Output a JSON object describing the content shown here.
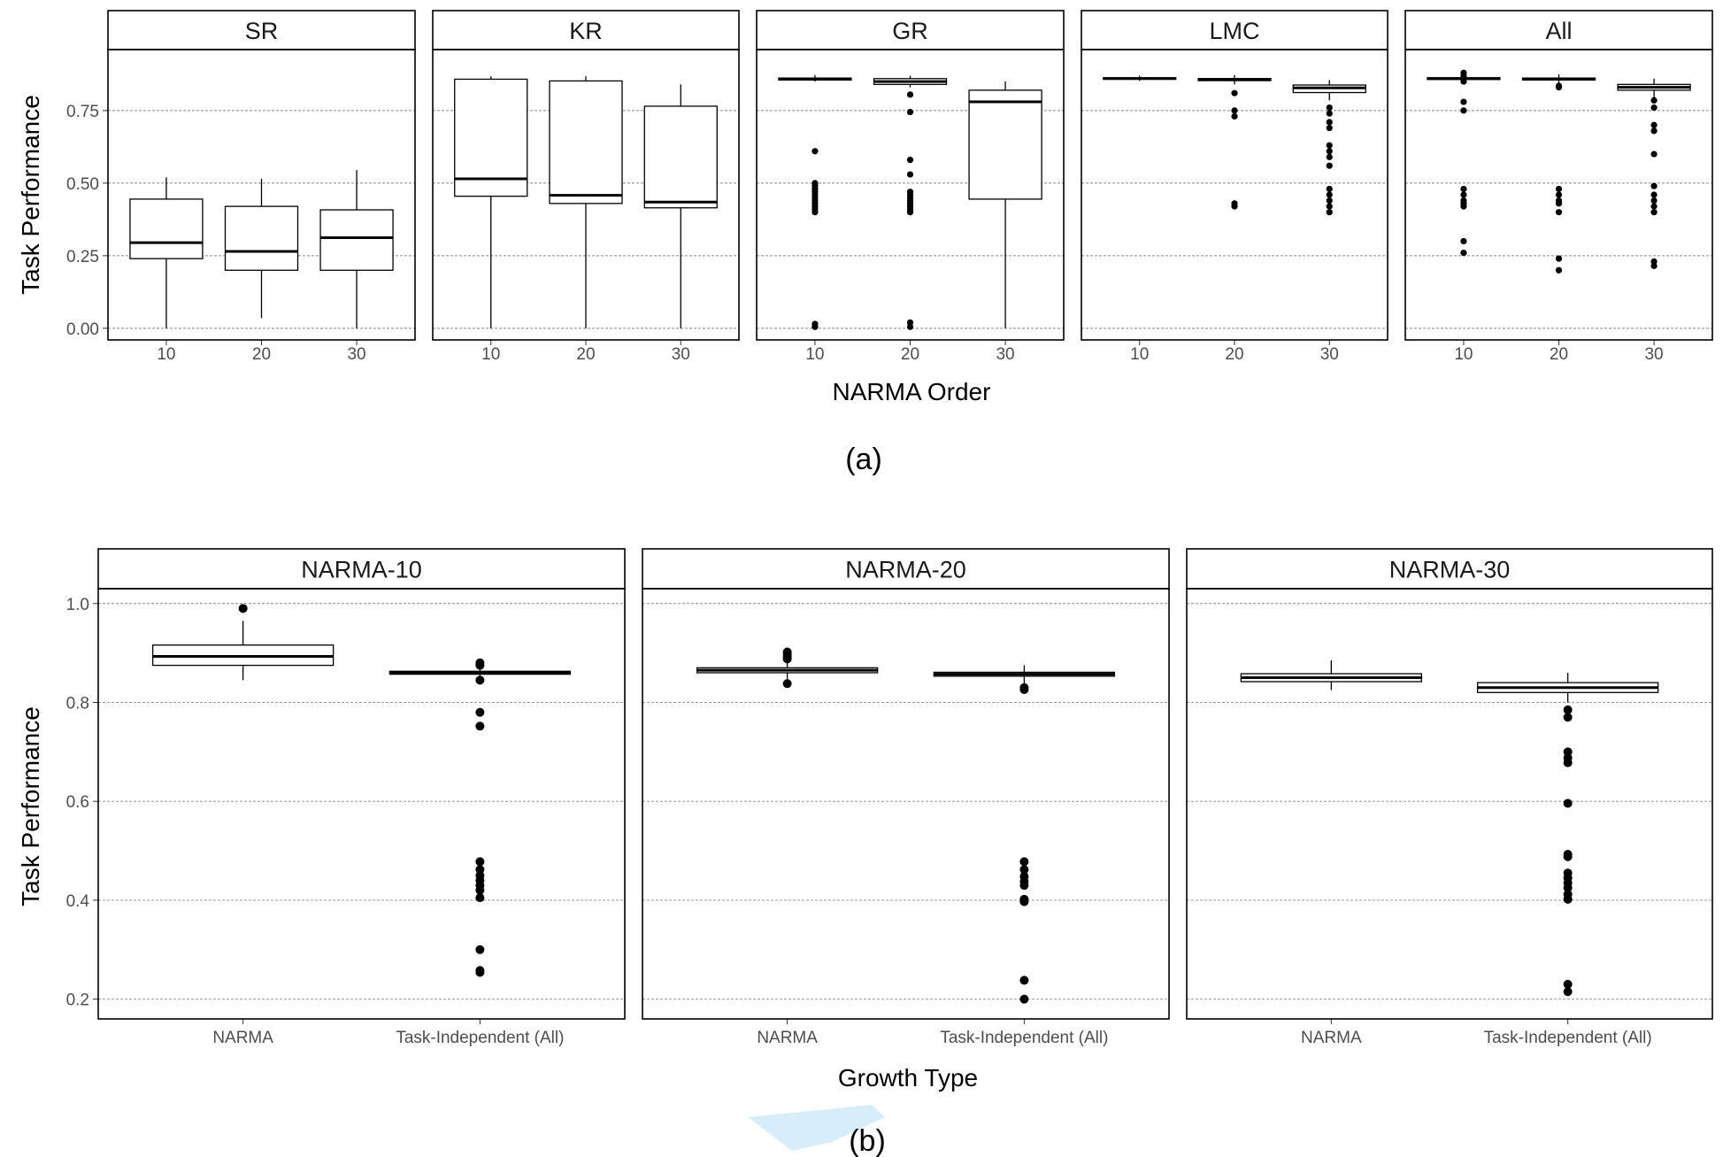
{
  "figure": {
    "caption_a": "(a)",
    "caption_b": "(b)",
    "watermark_color": "#c9e8f8"
  },
  "chart_data": [
    {
      "type": "box",
      "label": "(a)",
      "xlabel": "NARMA Order",
      "ylabel": "Task Performance",
      "ylim": [
        -0.04,
        0.96
      ],
      "yticks": [
        0,
        0.25,
        0.5,
        0.75
      ],
      "ytick_labels": [
        "0.00",
        "0.25",
        "0.50",
        "0.75"
      ],
      "categories": [
        "10",
        "20",
        "30"
      ],
      "grid": "horizontal dashed",
      "panels": [
        {
          "title": "SR",
          "boxes": [
            {
              "x": "10",
              "q1": 0.24,
              "median": 0.295,
              "q3": 0.445,
              "whisker_low": 0.0,
              "whisker_high": 0.52,
              "outliers": []
            },
            {
              "x": "20",
              "q1": 0.2,
              "median": 0.265,
              "q3": 0.42,
              "whisker_low": 0.035,
              "whisker_high": 0.515,
              "outliers": []
            },
            {
              "x": "30",
              "q1": 0.2,
              "median": 0.312,
              "q3": 0.408,
              "whisker_low": 0.0,
              "whisker_high": 0.545,
              "outliers": []
            }
          ]
        },
        {
          "title": "KR",
          "boxes": [
            {
              "x": "10",
              "q1": 0.455,
              "median": 0.515,
              "q3": 0.858,
              "whisker_low": 0.0,
              "whisker_high": 0.868,
              "outliers": []
            },
            {
              "x": "20",
              "q1": 0.43,
              "median": 0.458,
              "q3": 0.852,
              "whisker_low": 0.0,
              "whisker_high": 0.868,
              "outliers": []
            },
            {
              "x": "30",
              "q1": 0.415,
              "median": 0.435,
              "q3": 0.765,
              "whisker_low": 0.0,
              "whisker_high": 0.84,
              "outliers": []
            }
          ]
        },
        {
          "title": "GR",
          "boxes": [
            {
              "x": "10",
              "q1": 0.855,
              "median": 0.858,
              "q3": 0.862,
              "whisker_low": 0.85,
              "whisker_high": 0.872,
              "outliers": [
                0.61,
                0.5,
                0.49,
                0.48,
                0.47,
                0.46,
                0.45,
                0.44,
                0.43,
                0.42,
                0.41,
                0.4,
                0.015,
                0.005
              ]
            },
            {
              "x": "20",
              "q1": 0.84,
              "median": 0.85,
              "q3": 0.86,
              "whisker_low": 0.83,
              "whisker_high": 0.87,
              "outliers": [
                0.805,
                0.745,
                0.58,
                0.53,
                0.47,
                0.46,
                0.45,
                0.44,
                0.43,
                0.42,
                0.41,
                0.4,
                0.02,
                0.005
              ]
            },
            {
              "x": "30",
              "q1": 0.445,
              "median": 0.78,
              "q3": 0.82,
              "whisker_low": 0.0,
              "whisker_high": 0.85,
              "outliers": []
            }
          ]
        },
        {
          "title": "LMC",
          "boxes": [
            {
              "x": "10",
              "q1": 0.858,
              "median": 0.86,
              "q3": 0.863,
              "whisker_low": 0.852,
              "whisker_high": 0.87,
              "outliers": []
            },
            {
              "x": "20",
              "q1": 0.853,
              "median": 0.857,
              "q3": 0.86,
              "whisker_low": 0.84,
              "whisker_high": 0.872,
              "outliers": [
                0.81,
                0.75,
                0.73,
                0.43,
                0.42
              ]
            },
            {
              "x": "30",
              "q1": 0.812,
              "median": 0.828,
              "q3": 0.838,
              "whisker_low": 0.785,
              "whisker_high": 0.855,
              "outliers": [
                0.76,
                0.74,
                0.71,
                0.69,
                0.63,
                0.61,
                0.59,
                0.56,
                0.48,
                0.46,
                0.44,
                0.42,
                0.4
              ]
            }
          ]
        },
        {
          "title": "All",
          "boxes": [
            {
              "x": "10",
              "q1": 0.857,
              "median": 0.86,
              "q3": 0.863,
              "whisker_low": 0.85,
              "whisker_high": 0.875,
              "outliers": [
                0.88,
                0.87,
                0.85,
                0.78,
                0.75,
                0.48,
                0.46,
                0.44,
                0.43,
                0.42,
                0.3,
                0.26
              ]
            },
            {
              "x": "20",
              "q1": 0.855,
              "median": 0.858,
              "q3": 0.862,
              "whisker_low": 0.84,
              "whisker_high": 0.875,
              "outliers": [
                0.835,
                0.83,
                0.48,
                0.46,
                0.44,
                0.43,
                0.4,
                0.24,
                0.2
              ]
            },
            {
              "x": "30",
              "q1": 0.82,
              "median": 0.83,
              "q3": 0.84,
              "whisker_low": 0.795,
              "whisker_high": 0.86,
              "outliers": [
                0.785,
                0.76,
                0.7,
                0.68,
                0.6,
                0.49,
                0.46,
                0.44,
                0.42,
                0.4,
                0.23,
                0.215
              ]
            }
          ]
        }
      ]
    },
    {
      "type": "box",
      "label": "(b)",
      "xlabel": "Growth Type",
      "ylabel": "Task Performance",
      "ylim": [
        0.16,
        1.03
      ],
      "yticks": [
        0.2,
        0.4,
        0.6,
        0.8,
        1.0
      ],
      "ytick_labels": [
        "0.2",
        "0.4",
        "0.6",
        "0.8",
        "1.0"
      ],
      "categories": [
        "NARMA",
        "Task-Independent (All)"
      ],
      "grid": "horizontal dashed",
      "panels": [
        {
          "title": "NARMA-10",
          "boxes": [
            {
              "x": "NARMA",
              "q1": 0.875,
              "median": 0.893,
              "q3": 0.916,
              "whisker_low": 0.845,
              "whisker_high": 0.965,
              "outliers": [
                0.99
              ]
            },
            {
              "x": "Task-Independent (All)",
              "q1": 0.857,
              "median": 0.86,
              "q3": 0.863,
              "whisker_low": 0.85,
              "whisker_high": 0.87,
              "outliers": [
                0.88,
                0.875,
                0.845,
                0.78,
                0.752,
                0.478,
                0.462,
                0.45,
                0.44,
                0.43,
                0.42,
                0.405,
                0.3,
                0.258,
                0.254
              ]
            }
          ]
        },
        {
          "title": "NARMA-20",
          "boxes": [
            {
              "x": "NARMA",
              "q1": 0.86,
              "median": 0.865,
              "q3": 0.87,
              "whisker_low": 0.84,
              "whisker_high": 0.885,
              "outliers": [
                0.902,
                0.897,
                0.892,
                0.888,
                0.838
              ]
            },
            {
              "x": "Task-Independent (All)",
              "q1": 0.853,
              "median": 0.857,
              "q3": 0.861,
              "whisker_low": 0.835,
              "whisker_high": 0.875,
              "outliers": [
                0.83,
                0.826,
                0.478,
                0.462,
                0.448,
                0.438,
                0.43,
                0.402,
                0.397,
                0.238,
                0.2
              ]
            }
          ]
        },
        {
          "title": "NARMA-30",
          "boxes": [
            {
              "x": "NARMA",
              "q1": 0.842,
              "median": 0.85,
              "q3": 0.858,
              "whisker_low": 0.825,
              "whisker_high": 0.885,
              "outliers": []
            },
            {
              "x": "Task-Independent (All)",
              "q1": 0.82,
              "median": 0.83,
              "q3": 0.84,
              "whisker_low": 0.8,
              "whisker_high": 0.86,
              "outliers": [
                0.785,
                0.77,
                0.7,
                0.688,
                0.678,
                0.596,
                0.493,
                0.488,
                0.455,
                0.445,
                0.435,
                0.425,
                0.412,
                0.402,
                0.23,
                0.215
              ]
            }
          ]
        }
      ]
    }
  ]
}
